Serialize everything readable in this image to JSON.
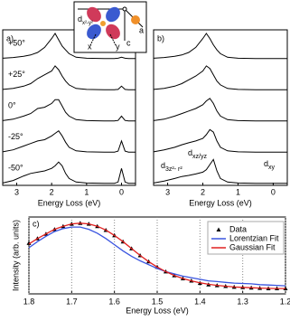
{
  "chart_data": [
    {
      "type": "line",
      "label": "a)",
      "xlabel": "Energy Loss (eV)",
      "xlim": [
        3.4,
        -0.4
      ],
      "xticks": [
        3,
        2,
        1,
        0
      ],
      "x": [
        3.4,
        3.1,
        2.8,
        2.6,
        2.4,
        2.2,
        2.0,
        1.9,
        1.8,
        1.7,
        1.6,
        1.5,
        1.3,
        1.0,
        0.5,
        0.2,
        0.1,
        0,
        -0.1,
        -0.2,
        -0.4
      ],
      "series": [
        {
          "name": "+50°",
          "color": "#000000",
          "values": [
            0.02,
            0.05,
            0.1,
            0.15,
            0.25,
            0.45,
            0.8,
            1.0,
            0.75,
            0.5,
            0.35,
            0.2,
            0.06,
            0.02,
            0.01,
            0.01,
            0.02,
            0.06,
            0.02,
            0.01,
            0.01
          ]
        },
        {
          "name": "+25°",
          "color": "#000000",
          "values": [
            0.02,
            0.06,
            0.15,
            0.25,
            0.45,
            0.6,
            0.75,
            0.95,
            0.8,
            0.55,
            0.35,
            0.2,
            0.06,
            0.02,
            0.01,
            0.01,
            0.02,
            0.15,
            0.02,
            0.01,
            0.01
          ]
        },
        {
          "name": "0°",
          "color": "#000000",
          "values": [
            0.02,
            0.08,
            0.2,
            0.3,
            0.5,
            0.55,
            0.7,
            0.85,
            0.85,
            0.6,
            0.35,
            0.2,
            0.06,
            0.02,
            0.01,
            0.01,
            0.03,
            0.2,
            0.03,
            0.01,
            0.01
          ]
        },
        {
          "name": "-25°",
          "color": "#000000",
          "values": [
            0.02,
            0.1,
            0.25,
            0.35,
            0.45,
            0.5,
            0.65,
            0.75,
            0.85,
            0.65,
            0.4,
            0.2,
            0.06,
            0.02,
            0.01,
            0.01,
            0.05,
            0.45,
            0.05,
            0.01,
            0.01
          ]
        },
        {
          "name": "-50°",
          "color": "#000000",
          "values": [
            0.02,
            0.12,
            0.3,
            0.4,
            0.45,
            0.5,
            0.6,
            0.7,
            0.85,
            0.7,
            0.4,
            0.2,
            0.06,
            0.02,
            0.01,
            0.01,
            0.06,
            0.6,
            0.06,
            0.01,
            0.01
          ]
        }
      ]
    },
    {
      "type": "line",
      "label": "b)",
      "xlabel": "Energy Loss (eV)",
      "xlim": [
        3.4,
        -0.4
      ],
      "xticks": [
        3,
        2,
        1,
        0
      ],
      "x": [
        3.4,
        3.1,
        2.8,
        2.6,
        2.4,
        2.2,
        2.0,
        1.9,
        1.8,
        1.7,
        1.6,
        1.5,
        1.3,
        1.0,
        0.5,
        0.2,
        0.1,
        0,
        -0.1,
        -0.2,
        -0.4
      ],
      "series": [
        {
          "color": "#000000",
          "values": [
            0.02,
            0.05,
            0.1,
            0.15,
            0.25,
            0.45,
            0.8,
            1.0,
            0.8,
            0.55,
            0.35,
            0.2,
            0.06,
            0.02,
            0.01,
            0.01,
            0.01,
            0.01,
            0.01,
            0.01,
            0.01
          ]
        },
        {
          "color": "#000000",
          "values": [
            0.02,
            0.06,
            0.15,
            0.25,
            0.4,
            0.55,
            0.75,
            0.95,
            0.85,
            0.6,
            0.35,
            0.2,
            0.06,
            0.02,
            0.01,
            0.01,
            0.01,
            0.01,
            0.01,
            0.01,
            0.01
          ]
        },
        {
          "color": "#000000",
          "values": [
            0.02,
            0.08,
            0.2,
            0.3,
            0.4,
            0.5,
            0.65,
            0.8,
            0.9,
            0.7,
            0.4,
            0.2,
            0.06,
            0.02,
            0.01,
            0.01,
            0.01,
            0.01,
            0.01,
            0.01,
            0.01
          ]
        },
        {
          "color": "#000000",
          "values": [
            0.02,
            0.1,
            0.2,
            0.3,
            0.38,
            0.45,
            0.55,
            0.7,
            0.9,
            0.8,
            0.45,
            0.2,
            0.06,
            0.02,
            0.01,
            0.01,
            0.01,
            0.01,
            0.01,
            0.01,
            0.01
          ]
        },
        {
          "color": "#000000",
          "values": [
            0.02,
            0.1,
            0.2,
            0.28,
            0.32,
            0.38,
            0.45,
            0.55,
            0.75,
            0.95,
            0.5,
            0.2,
            0.06,
            0.02,
            0.01,
            0.01,
            0.01,
            0.01,
            0.01,
            0.01,
            0.01
          ]
        }
      ],
      "annotations": [
        {
          "main": "d",
          "sub": "3z²- r²"
        },
        {
          "main": "d",
          "sub": "xz/yz"
        },
        {
          "main": "d",
          "sub": "xy"
        }
      ]
    },
    {
      "type": "line",
      "label": "c)",
      "xlabel": "Energy Loss (eV)",
      "ylabel": "Intensity (arb. units)",
      "xlim": [
        1.8,
        1.2
      ],
      "xticks": [
        1.8,
        1.7,
        1.6,
        1.5,
        1.4,
        1.3,
        1.2
      ],
      "ylim": [
        0,
        1
      ],
      "grid": true,
      "legend": "upper right",
      "x": [
        1.8,
        1.78,
        1.76,
        1.74,
        1.72,
        1.7,
        1.68,
        1.66,
        1.64,
        1.62,
        1.6,
        1.58,
        1.56,
        1.54,
        1.52,
        1.5,
        1.48,
        1.46,
        1.44,
        1.42,
        1.4,
        1.38,
        1.36,
        1.34,
        1.32,
        1.3,
        1.28,
        1.26,
        1.24,
        1.22,
        1.2
      ],
      "series": [
        {
          "name": "Data",
          "color": "#000000",
          "marker": "triangle",
          "values": [
            0.66,
            0.72,
            0.78,
            0.84,
            0.88,
            0.91,
            0.92,
            0.91,
            0.88,
            0.83,
            0.76,
            0.68,
            0.59,
            0.5,
            0.42,
            0.35,
            0.29,
            0.24,
            0.2,
            0.17,
            0.14,
            0.12,
            0.11,
            0.1,
            0.09,
            0.085,
            0.08,
            0.075,
            0.07,
            0.07,
            0.07
          ]
        },
        {
          "name": "Lorentzian Fit",
          "color": "#3a55e0",
          "values": [
            0.6,
            0.68,
            0.75,
            0.81,
            0.85,
            0.87,
            0.87,
            0.84,
            0.79,
            0.72,
            0.64,
            0.56,
            0.49,
            0.43,
            0.38,
            0.33,
            0.29,
            0.26,
            0.23,
            0.21,
            0.19,
            0.17,
            0.16,
            0.15,
            0.14,
            0.135,
            0.13,
            0.12,
            0.115,
            0.11,
            0.105
          ]
        },
        {
          "name": "Gaussian Fit",
          "color": "#e02020",
          "values": [
            0.65,
            0.72,
            0.78,
            0.84,
            0.88,
            0.91,
            0.92,
            0.91,
            0.88,
            0.83,
            0.76,
            0.68,
            0.59,
            0.5,
            0.42,
            0.35,
            0.29,
            0.24,
            0.2,
            0.17,
            0.145,
            0.125,
            0.11,
            0.1,
            0.09,
            0.085,
            0.08,
            0.075,
            0.072,
            0.07,
            0.07
          ]
        }
      ]
    }
  ],
  "inset": {
    "orbital": {
      "main": "d",
      "sub": "x²-y²"
    },
    "axes": [
      "x",
      "y",
      "a",
      "c"
    ]
  }
}
